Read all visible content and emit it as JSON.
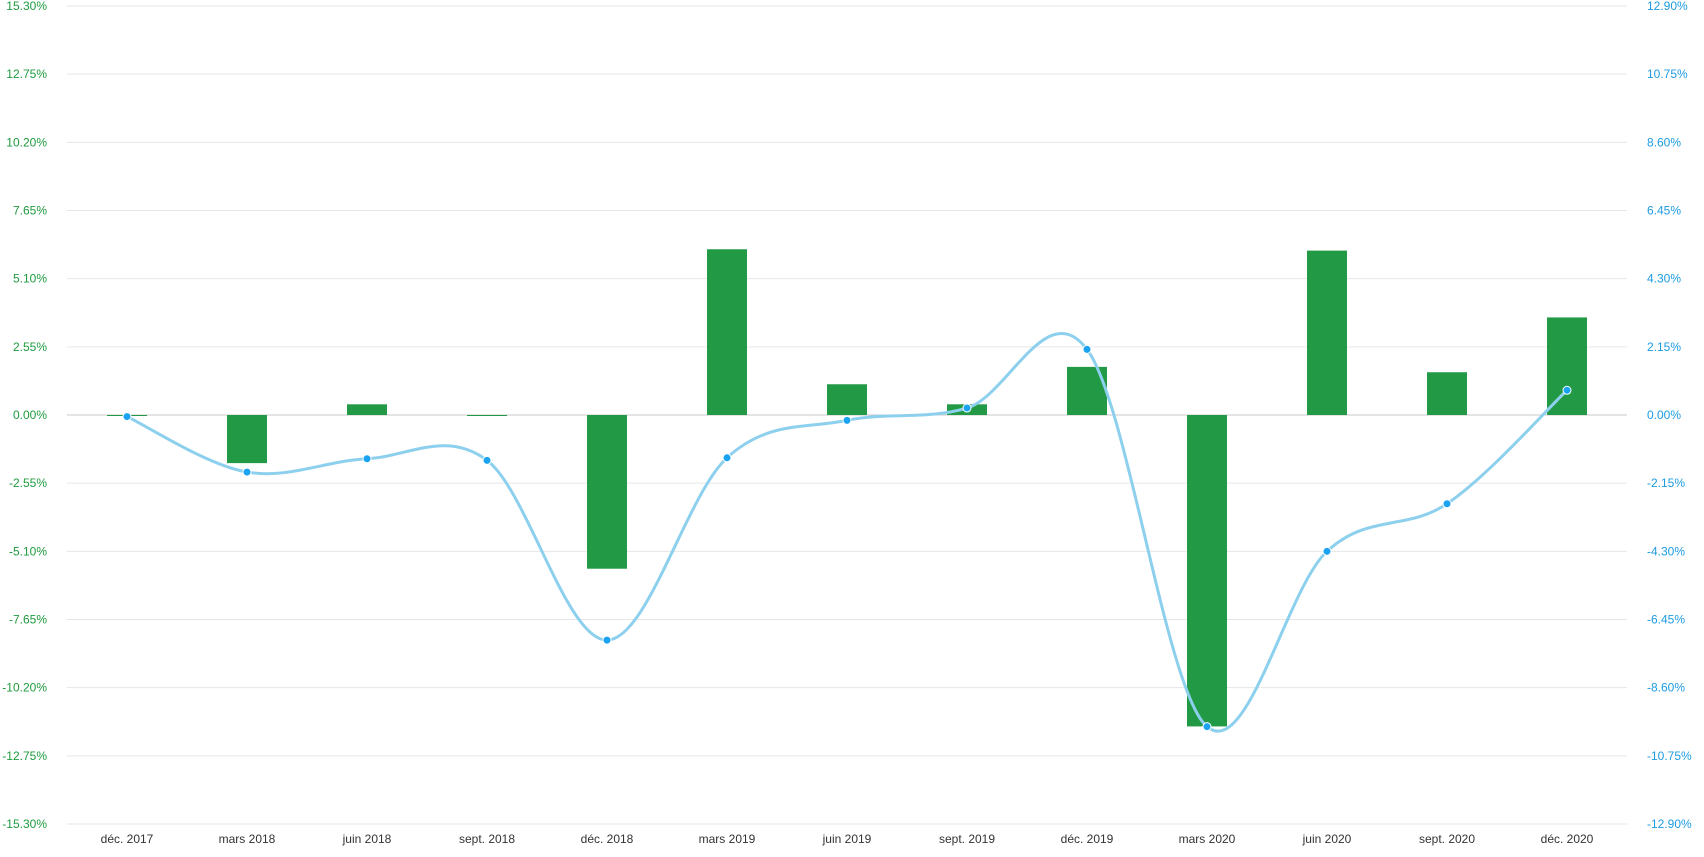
{
  "colors": {
    "bars": "#229944",
    "line": "#8dd0ee",
    "point": "#1aa3f0",
    "left_axis_text": "#1f9a3e",
    "right_axis_text": "#1d9be1",
    "grid": "#e6e6e6",
    "zero_line": "#c8c8c8",
    "x_axis_text": "#333333"
  },
  "chart_data": {
    "type": "bar",
    "title": "",
    "xlabel": "",
    "categories": [
      "déc. 2017",
      "mars 2018",
      "juin 2018",
      "sept. 2018",
      "déc. 2018",
      "mars 2019",
      "juin 2019",
      "sept. 2019",
      "déc. 2019",
      "mars 2020",
      "juin 2020",
      "sept. 2020",
      "déc. 2020"
    ],
    "left_axis": {
      "ylim": [
        -15.3,
        15.3
      ],
      "ticks": [
        "15.30%",
        "12.75%",
        "10.20%",
        "7.65%",
        "5.10%",
        "2.55%",
        "0.00%",
        "-2.55%",
        "-5.10%",
        "-7.65%",
        "-10.20%",
        "-12.75%",
        "-15.30%"
      ]
    },
    "right_axis": {
      "ylim": [
        -12.9,
        12.9
      ],
      "ticks": [
        "12.90%",
        "10.75%",
        "8.60%",
        "6.45%",
        "4.30%",
        "2.15%",
        "0.00%",
        "-2.15%",
        "-4.30%",
        "-6.45%",
        "-8.60%",
        "-10.75%",
        "-12.90%"
      ]
    },
    "series": [
      {
        "type": "bar",
        "axis": "left",
        "values": [
          0.0,
          -1.8,
          0.4,
          0.0,
          -5.75,
          6.2,
          1.15,
          0.4,
          1.8,
          -11.65,
          6.15,
          1.6,
          3.65
        ]
      },
      {
        "type": "line",
        "axis": "right",
        "values": [
          -0.05,
          -1.8,
          -1.38,
          -1.43,
          -7.1,
          -1.35,
          -0.17,
          0.22,
          2.07,
          -9.83,
          -4.3,
          -2.8,
          0.78
        ]
      }
    ],
    "grid": true,
    "legend": "none"
  }
}
